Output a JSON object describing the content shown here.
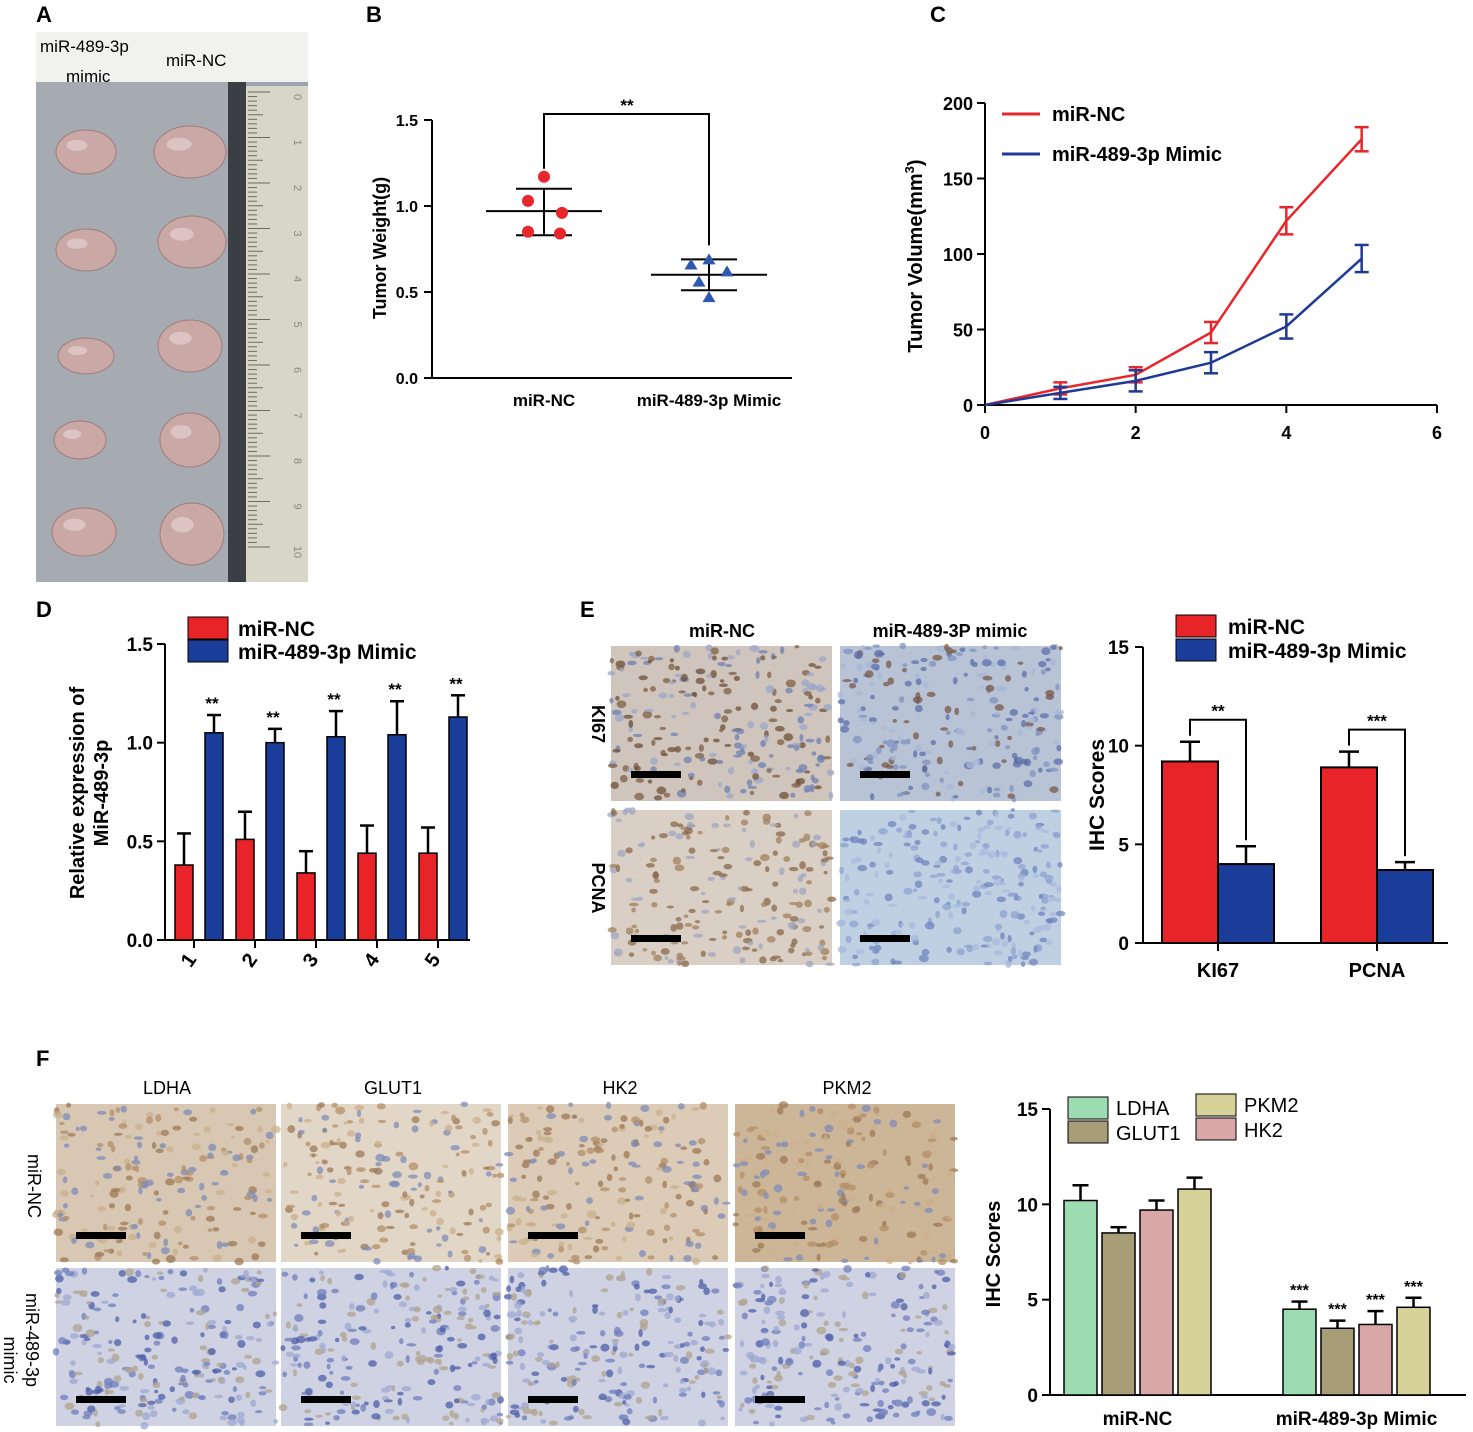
{
  "colors": {
    "red": "#e8262b",
    "blue": "#1f3a93",
    "bar_red": "#e82429",
    "bar_blue": "#1a3d9a",
    "tri_blue": "#2e58b0",
    "ldha": "#9ddcb0",
    "glut1": "#a79e77",
    "hk2": "#d9a7a7",
    "pkm2": "#d6d29a",
    "photo_tissue": "#c9a8a6",
    "ruler": "#d8d6c8"
  },
  "panel_A": {
    "letter": "A",
    "label_mimic_line1": "miR-489-3p",
    "label_mimic_line2": "mimic",
    "label_nc": "miR-NC",
    "ruler_numbers": [
      "0",
      "1",
      "2",
      "3",
      "4",
      "5",
      "6",
      "7",
      "8",
      "9",
      "10"
    ]
  },
  "panel_B": {
    "letter": "B",
    "sig": "**",
    "chart_data": {
      "type": "scatter",
      "ylabel": "Tumor Weight(g)",
      "ylim": [
        0,
        1.5
      ],
      "yticks": [
        "0.0",
        "0.5",
        "1.0",
        "1.5"
      ],
      "categories": [
        "miR-NC",
        "miR-489-3p Mimic"
      ],
      "series": [
        {
          "name": "miR-NC",
          "values": [
            1.17,
            1.03,
            0.96,
            0.85,
            0.84
          ],
          "mean": 0.97,
          "sd_upper": 1.1,
          "sd_lower": 0.83
        },
        {
          "name": "miR-489-3p Mimic",
          "values": [
            0.69,
            0.66,
            0.62,
            0.56,
            0.47
          ],
          "mean": 0.6,
          "sd_upper": 0.69,
          "sd_lower": 0.51
        }
      ]
    }
  },
  "panel_C": {
    "letter": "C",
    "chart_data": {
      "type": "line",
      "ylabel": "Tumor Volume(mm",
      "ylabel_sup": "3",
      "ylabel_close": ")",
      "x": [
        0,
        1,
        2,
        3,
        4,
        5
      ],
      "xlim": [
        0,
        6
      ],
      "ylim": [
        0,
        200
      ],
      "xticks": [
        "0",
        "2",
        "4",
        "6"
      ],
      "yticks": [
        "0",
        "50",
        "100",
        "150",
        "200"
      ],
      "series": [
        {
          "name": "miR-NC",
          "values": [
            0,
            11,
            20,
            48,
            122,
            176
          ],
          "err": [
            0,
            4,
            5,
            7,
            9,
            8
          ]
        },
        {
          "name": "miR-489-3p Mimic",
          "values": [
            0,
            8,
            16,
            28,
            52,
            97
          ],
          "err": [
            0,
            4,
            7,
            7,
            8,
            9
          ]
        }
      ]
    }
  },
  "panel_D": {
    "letter": "D",
    "chart_data": {
      "type": "bar",
      "ylabel_line1": "Relative expression of",
      "ylabel_line2": "MiR-489-3p",
      "categories": [
        "1",
        "2",
        "3",
        "4",
        "5"
      ],
      "ylim": [
        0,
        1.5
      ],
      "yticks": [
        "0.0",
        "0.5",
        "1.0",
        "1.5"
      ],
      "series": [
        {
          "name": "miR-NC",
          "values": [
            0.38,
            0.51,
            0.34,
            0.44,
            0.44
          ],
          "err": [
            0.16,
            0.14,
            0.11,
            0.14,
            0.13
          ]
        },
        {
          "name": "miR-489-3p Mimic",
          "values": [
            1.05,
            1.0,
            1.03,
            1.04,
            1.13
          ],
          "err": [
            0.09,
            0.07,
            0.13,
            0.17,
            0.11
          ]
        }
      ],
      "annotations": [
        "**",
        "**",
        "**",
        "**",
        "**"
      ]
    }
  },
  "panel_E": {
    "letter": "E",
    "col_nc": "miR-NC",
    "col_mimic": "miR-489-3P mimic",
    "row1": "KI67",
    "row2": "PCNA",
    "chart_data": {
      "type": "bar",
      "ylabel": "IHC Scores",
      "categories": [
        "KI67",
        "PCNA"
      ],
      "ylim": [
        0,
        15
      ],
      "yticks": [
        "0",
        "5",
        "10",
        "15"
      ],
      "series": [
        {
          "name": "miR-NC",
          "values": [
            9.2,
            8.9
          ],
          "err": [
            1.0,
            0.8
          ]
        },
        {
          "name": "miR-489-3p Mimic",
          "values": [
            4.0,
            3.7
          ],
          "err": [
            0.9,
            0.4
          ]
        }
      ],
      "annotations": [
        "**",
        "***"
      ]
    }
  },
  "panel_F": {
    "letter": "F",
    "cols": [
      "LDHA",
      "GLUT1",
      "HK2",
      "PKM2"
    ],
    "row1": "miR-NC",
    "row2_line1": "miR-489-3p",
    "row2_line2": "mimic",
    "chart_data": {
      "type": "bar",
      "ylabel": "IHC Scores",
      "categories": [
        "miR-NC",
        "miR-489-3p Mimic"
      ],
      "ylim": [
        0,
        15
      ],
      "yticks": [
        "0",
        "5",
        "10",
        "15"
      ],
      "series": [
        {
          "name": "LDHA",
          "values": [
            10.2,
            4.5
          ],
          "err": [
            0.8,
            0.4
          ]
        },
        {
          "name": "GLUT1",
          "values": [
            8.5,
            3.5
          ],
          "err": [
            0.3,
            0.4
          ]
        },
        {
          "name": "HK2",
          "values": [
            9.7,
            3.7
          ],
          "err": [
            0.5,
            0.7
          ]
        },
        {
          "name": "PKM2",
          "values": [
            10.8,
            4.6
          ],
          "err": [
            0.6,
            0.5
          ]
        }
      ],
      "annotations": [
        "***",
        "***",
        "***",
        "***"
      ]
    }
  }
}
